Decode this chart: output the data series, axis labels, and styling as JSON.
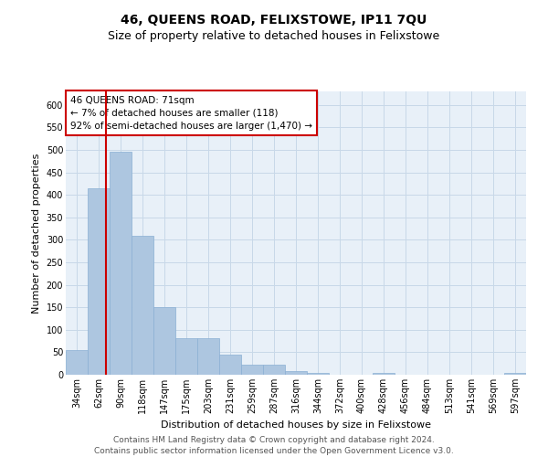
{
  "title": "46, QUEENS ROAD, FELIXSTOWE, IP11 7QU",
  "subtitle": "Size of property relative to detached houses in Felixstowe",
  "xlabel": "Distribution of detached houses by size in Felixstowe",
  "ylabel": "Number of detached properties",
  "bar_color": "#adc6e0",
  "bar_edge_color": "#8aafd4",
  "annotation_box_color": "#cc0000",
  "annotation_lines": [
    "46 QUEENS ROAD: 71sqm",
    "← 7% of detached houses are smaller (118)",
    "92% of semi-detached houses are larger (1,470) →"
  ],
  "categories": [
    "34sqm",
    "62sqm",
    "90sqm",
    "118sqm",
    "147sqm",
    "175sqm",
    "203sqm",
    "231sqm",
    "259sqm",
    "287sqm",
    "316sqm",
    "344sqm",
    "372sqm",
    "400sqm",
    "428sqm",
    "456sqm",
    "484sqm",
    "513sqm",
    "541sqm",
    "569sqm",
    "597sqm"
  ],
  "values": [
    55,
    415,
    495,
    308,
    150,
    82,
    82,
    45,
    22,
    23,
    8,
    5,
    0,
    0,
    5,
    0,
    0,
    0,
    0,
    0,
    5
  ],
  "ylim": [
    0,
    630
  ],
  "yticks": [
    0,
    50,
    100,
    150,
    200,
    250,
    300,
    350,
    400,
    450,
    500,
    550,
    600
  ],
  "footer_lines": [
    "Contains HM Land Registry data © Crown copyright and database right 2024.",
    "Contains public sector information licensed under the Open Government Licence v3.0."
  ],
  "background_color": "#ffffff",
  "grid_color": "#c8d8e8",
  "vline_color": "#cc0000",
  "title_fontsize": 10,
  "subtitle_fontsize": 9,
  "axis_label_fontsize": 8,
  "tick_fontsize": 7,
  "annotation_fontsize": 7.5,
  "footer_fontsize": 6.5
}
